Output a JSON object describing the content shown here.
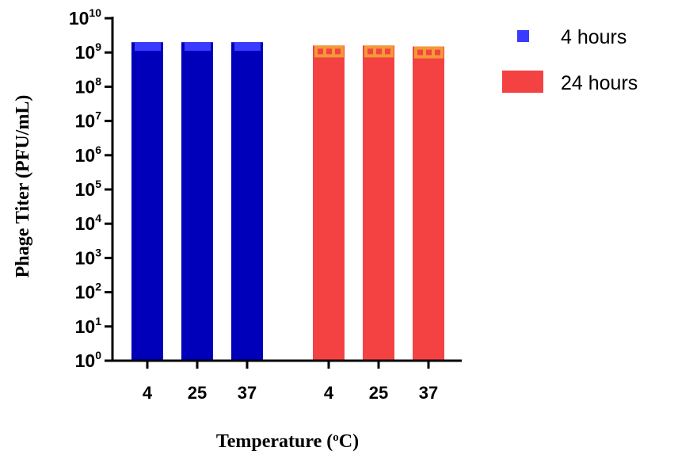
{
  "chart_data": {
    "type": "bar",
    "scale": "log10",
    "xlabel": {
      "main": "Temperature (",
      "sup": "o",
      "tail": "C)"
    },
    "ylabel": "Phage Titer (PFU/mL)",
    "ylim": [
      1,
      10000000000
    ],
    "yticks": [
      {
        "base": "10",
        "exp": "0"
      },
      {
        "base": "10",
        "exp": "1"
      },
      {
        "base": "10",
        "exp": "2"
      },
      {
        "base": "10",
        "exp": "3"
      },
      {
        "base": "10",
        "exp": "4"
      },
      {
        "base": "10",
        "exp": "5"
      },
      {
        "base": "10",
        "exp": "6"
      },
      {
        "base": "10",
        "exp": "7"
      },
      {
        "base": "10",
        "exp": "8"
      },
      {
        "base": "10",
        "exp": "9"
      },
      {
        "base": "10",
        "exp": "10"
      }
    ],
    "categories": [
      "4",
      "25",
      "37"
    ],
    "series": [
      {
        "name": "4 hours",
        "color": "#0000bb",
        "marker_color": "#3b3bff",
        "values": [
          2000000000,
          2000000000,
          2000000000
        ]
      },
      {
        "name": "24 hours",
        "color": "#f44242",
        "marker_color": "#f39a36",
        "values": [
          1600000000,
          1600000000,
          1500000000
        ]
      }
    ],
    "legend_position": "top-right",
    "grid": false
  }
}
